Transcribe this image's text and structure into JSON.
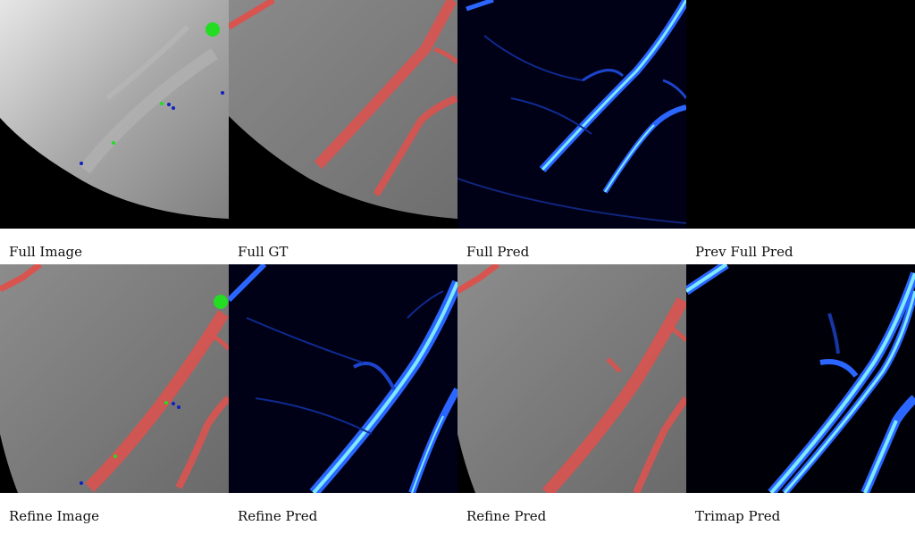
{
  "captions": {
    "full_image": "Full Image",
    "full_gt": "Full GT",
    "full_pred": "Full Pred",
    "prev_full_pred": "Prev Full Pred",
    "refine_image": "Refine Image",
    "refine_pred_1": "Refine Pred",
    "refine_pred_2": "Refine Pred",
    "trimap_pred": "Trimap Pred"
  },
  "colors": {
    "mask_red": "#d9534f",
    "click_positive": "#22dd22",
    "click_negative": "#1020c0",
    "vessel_pred": "#2a66ff",
    "vessel_core": "#7fe9ff",
    "background_black": "#000000"
  }
}
